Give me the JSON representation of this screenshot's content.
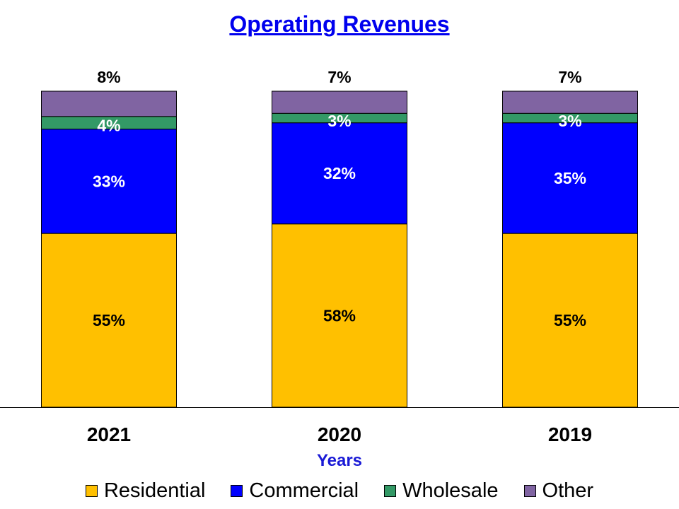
{
  "chart_data": {
    "type": "bar",
    "stacked": true,
    "title": "Operating Revenues",
    "xlabel": "Years",
    "ylabel": "",
    "ylim": [
      0,
      100
    ],
    "categories": [
      "2021",
      "2020",
      "2019"
    ],
    "series": [
      {
        "name": "Residential",
        "color": "#ffc000",
        "values": [
          55,
          58,
          55
        ],
        "labels": [
          "55%",
          "58%",
          "55%"
        ]
      },
      {
        "name": "Commercial",
        "color": "#0000ff",
        "values": [
          33,
          32,
          35
        ],
        "labels": [
          "33%",
          "32%",
          "35%"
        ]
      },
      {
        "name": "Wholesale",
        "color": "#339966",
        "values": [
          4,
          3,
          3
        ],
        "labels": [
          "4%",
          "3%",
          "3%"
        ]
      },
      {
        "name": "Other",
        "color": "#8064a2",
        "values": [
          8,
          7,
          7
        ],
        "labels": [
          "8%",
          "7%",
          "7%"
        ]
      }
    ],
    "legend_position": "bottom"
  }
}
